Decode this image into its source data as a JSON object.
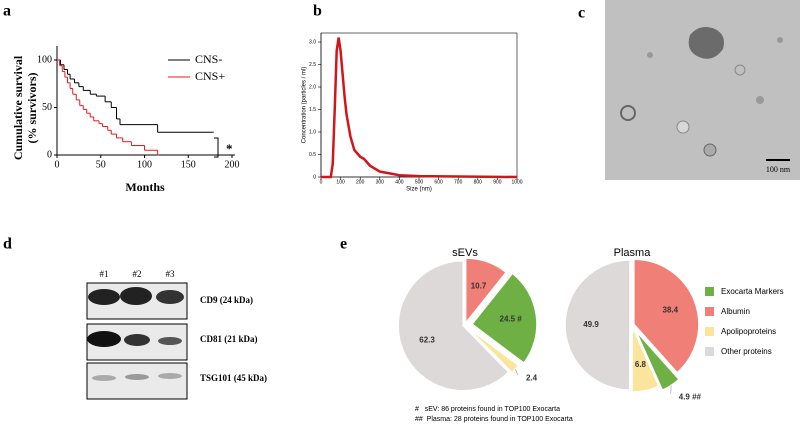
{
  "panel_labels": [
    "a",
    "b",
    "c",
    "d",
    "e"
  ],
  "chart_data": [
    {
      "type": "step",
      "ylabel": [
        "Cumulative survival",
        "(% survivors)"
      ],
      "xlabel": "Months",
      "xlim": [
        0,
        200
      ],
      "xticks": [
        0,
        50,
        100,
        150,
        200
      ],
      "ylim": [
        0,
        100
      ],
      "yticks": [
        0,
        50,
        100
      ],
      "legend": "top-right",
      "annotation": "*",
      "series": [
        {
          "name": "CNS-",
          "color": "#000000",
          "x": [
            0,
            4,
            8,
            12,
            15,
            20,
            25,
            30,
            38,
            45,
            55,
            62,
            68,
            72,
            115,
            178
          ],
          "values": [
            100,
            95,
            90,
            85,
            80,
            76,
            72,
            68,
            64,
            62,
            56,
            50,
            38,
            32,
            24,
            24
          ]
        },
        {
          "name": "CNS+",
          "color": "#e8191c",
          "x": [
            0,
            3,
            6,
            9,
            12,
            15,
            18,
            22,
            26,
            30,
            34,
            38,
            42,
            48,
            52,
            58,
            62,
            68,
            75,
            85,
            100,
            115
          ],
          "values": [
            100,
            94,
            88,
            82,
            76,
            70,
            64,
            58,
            52,
            48,
            44,
            40,
            36,
            33,
            30,
            26,
            22,
            18,
            14,
            10,
            5,
            0
          ]
        }
      ]
    },
    {
      "type": "line",
      "ylabel": "Concentration (particles / ml)",
      "xlabel": "Size (nm)",
      "xlim": [
        0,
        1000
      ],
      "xticks": [
        0,
        100,
        200,
        300,
        400,
        500,
        600,
        700,
        800,
        900,
        1000
      ],
      "ylim": [
        0,
        3.2
      ],
      "yticks": [
        0,
        0.5,
        {
          "value": 1,
          "label": "1.0"
        },
        1.5,
        {
          "value": 2,
          "label": "2.0"
        },
        2.5,
        {
          "value": 3,
          "label": "3.0"
        }
      ],
      "series": [
        {
          "color": "#d0161b",
          "x": [
            0,
            50,
            60,
            70,
            80,
            90,
            100,
            110,
            120,
            130,
            150,
            170,
            200,
            220,
            250,
            300,
            350,
            400,
            500,
            700,
            1000
          ],
          "values": [
            0,
            0,
            0.3,
            1.5,
            2.8,
            3.1,
            2.8,
            2.3,
            1.8,
            1.4,
            0.9,
            0.6,
            0.45,
            0.4,
            0.25,
            0.12,
            0.08,
            0.04,
            0.02,
            0.01,
            0
          ]
        }
      ]
    },
    {
      "type": "pie",
      "title": "sEVs",
      "categories": [
        "Albumin",
        "Exocarta Markers",
        "Apolipoproteins",
        "Other proteins"
      ],
      "values": [
        10.7,
        24.5,
        2.4,
        62.3
      ],
      "value_labels": [
        "10.7",
        "24.5 #",
        "2.4",
        "62.3"
      ],
      "colors": [
        "#ef7f77",
        "#6eb043",
        "#fbe49b",
        "#dcd9d8"
      ]
    },
    {
      "type": "pie",
      "title": "Plasma",
      "categories": [
        "Albumin",
        "Exocarta Markers",
        "Apolipoproteins",
        "Other proteins"
      ],
      "values": [
        38.4,
        4.9,
        6.8,
        49.9
      ],
      "value_labels": [
        "38.4",
        "4.9 ##",
        "6.8",
        "49.9"
      ],
      "colors": [
        "#ef7f77",
        "#6eb043",
        "#fbe49b",
        "#dcd9d8"
      ]
    }
  ],
  "micrograph": {
    "scale_bar": "100 nm"
  },
  "blot": {
    "lanes": [
      "#1",
      "#2",
      "#3"
    ],
    "rows": [
      "CD9 (24 kDa)",
      "CD81 (21 kDa)",
      "TSG101 (45 kDa)"
    ]
  },
  "footnotes": [
    "#   sEV: 86 proteins found in TOP100 Exocarta",
    "##  Plasma: 28 proteins found in TOP100 Exocarta"
  ]
}
